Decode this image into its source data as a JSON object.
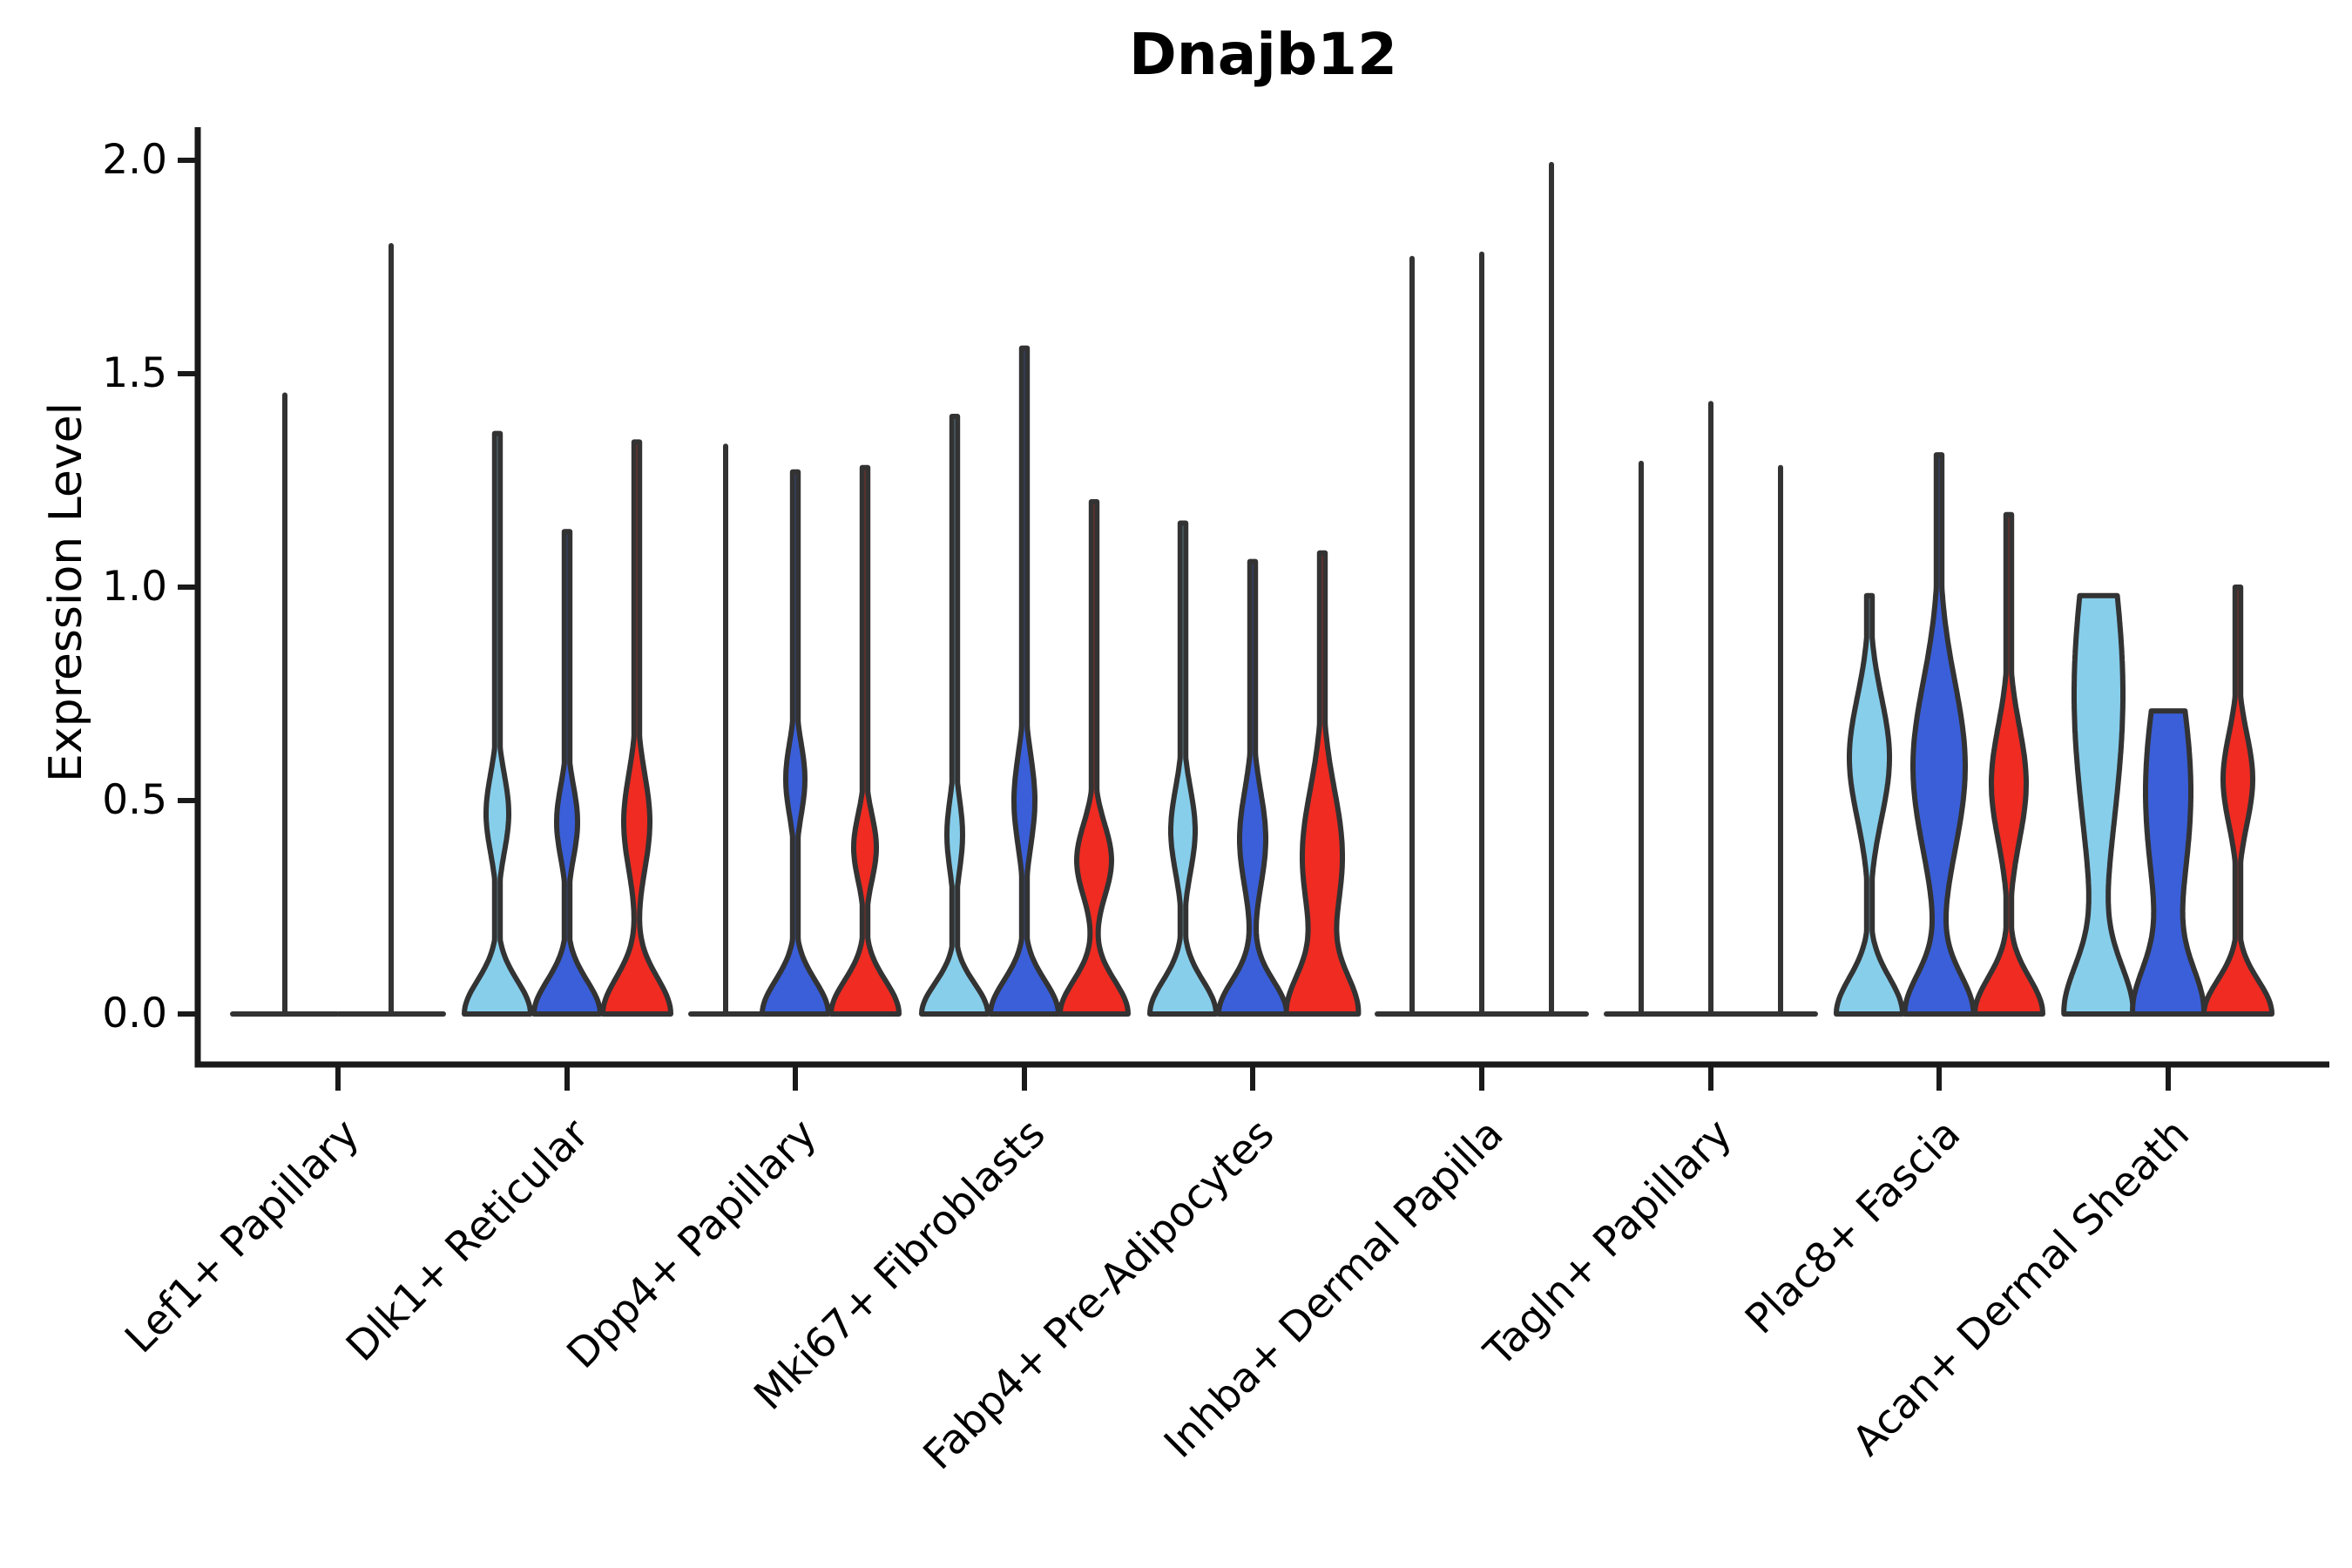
{
  "title": "Dnajb12",
  "axes": {
    "ylabel": "Expression Level",
    "yticks": [
      "0.0",
      "0.5",
      "1.0",
      "1.5",
      "2.0"
    ],
    "ytick_values": [
      0.0,
      0.5,
      1.0,
      1.5,
      2.0
    ],
    "ylim": [
      0.0,
      2.07
    ]
  },
  "colors": {
    "light_blue": "#87CEEB",
    "dark_blue": "#3A5FD9",
    "red": "#EF2B22",
    "outline": "#333333",
    "axis": "#1a1a1a"
  },
  "chart_data": {
    "type": "violin",
    "title": "Dnajb12",
    "xlabel": "",
    "ylabel": "Expression Level",
    "ylim": [
      0.0,
      2.07
    ],
    "grid": false,
    "legend": "none",
    "x_tick_rotation": 45,
    "series_colors": [
      "light_blue",
      "dark_blue",
      "red"
    ],
    "categories": [
      "Lef1+ Papillary",
      "Dlk1+ Reticular",
      "Dpp4+ Papillary",
      "Mki67+ Fibroblasts",
      "Fabp4+ Pre-Adipocytes",
      "Inhba+ Dermal Papilla",
      "Tagln+ Papillary",
      "Plac8+ Fascia",
      "Acan+ Dermal Sheath"
    ],
    "groups": [
      {
        "category": "Lef1+ Papillary",
        "violins": [
          {
            "color": null,
            "peak": 1.45,
            "half_width": 60,
            "bumps": []
          },
          {
            "color": null,
            "peak": 1.8,
            "half_width": 60,
            "bumps": []
          }
        ]
      },
      {
        "category": "Dlk1+ Reticular",
        "violins": [
          {
            "color": "light_blue",
            "peak": 1.36,
            "half_width": 40,
            "bumps": [
              [
                0.0,
                0.11,
                38
              ],
              [
                0.47,
                0.13,
                13
              ]
            ]
          },
          {
            "color": "dark_blue",
            "peak": 1.13,
            "half_width": 40,
            "bumps": [
              [
                0.0,
                0.11,
                38
              ],
              [
                0.45,
                0.12,
                12
              ]
            ]
          },
          {
            "color": "red",
            "peak": 1.34,
            "half_width": 40,
            "bumps": [
              [
                0.0,
                0.12,
                39
              ],
              [
                0.45,
                0.16,
                15
              ]
            ]
          }
        ]
      },
      {
        "category": "Dpp4+ Papillary",
        "violins": [
          {
            "color": null,
            "peak": 1.33,
            "half_width": 40,
            "bumps": []
          },
          {
            "color": "dark_blue",
            "peak": 1.27,
            "half_width": 40,
            "bumps": [
              [
                0.0,
                0.11,
                38
              ],
              [
                0.55,
                0.12,
                11
              ]
            ]
          },
          {
            "color": "red",
            "peak": 1.28,
            "half_width": 40,
            "bumps": [
              [
                0.0,
                0.11,
                39
              ],
              [
                0.39,
                0.11,
                13
              ]
            ]
          }
        ]
      },
      {
        "category": "Mki67+ Fibroblasts",
        "violins": [
          {
            "color": "light_blue",
            "peak": 1.4,
            "half_width": 40,
            "bumps": [
              [
                0.0,
                0.1,
                38
              ],
              [
                0.42,
                0.12,
                9
              ]
            ]
          },
          {
            "color": "dark_blue",
            "peak": 1.56,
            "half_width": 40,
            "bumps": [
              [
                0.0,
                0.11,
                39
              ],
              [
                0.5,
                0.15,
                12
              ]
            ]
          },
          {
            "color": "red",
            "peak": 1.2,
            "half_width": 40,
            "bumps": [
              [
                0.0,
                0.11,
                39
              ],
              [
                0.36,
                0.12,
                20
              ]
            ]
          }
        ]
      },
      {
        "category": "Fabp4+ Pre-Adipocytes",
        "violins": [
          {
            "color": "light_blue",
            "peak": 1.15,
            "half_width": 40,
            "bumps": [
              [
                0.0,
                0.11,
                38
              ],
              [
                0.43,
                0.14,
                14
              ]
            ]
          },
          {
            "color": "dark_blue",
            "peak": 1.06,
            "half_width": 40,
            "bumps": [
              [
                0.0,
                0.11,
                39
              ],
              [
                0.41,
                0.16,
                15
              ]
            ]
          },
          {
            "color": "red",
            "peak": 1.08,
            "half_width": 40,
            "bumps": [
              [
                0.0,
                0.13,
                40
              ],
              [
                0.37,
                0.22,
                23
              ]
            ]
          }
        ]
      },
      {
        "category": "Inhba+ Dermal Papilla",
        "violins": [
          {
            "color": null,
            "peak": 1.77,
            "half_width": 40,
            "bumps": []
          },
          {
            "color": null,
            "peak": 1.78,
            "half_width": 40,
            "bumps": []
          },
          {
            "color": null,
            "peak": 1.99,
            "half_width": 40,
            "bumps": []
          }
        ]
      },
      {
        "category": "Tagln+ Papillary",
        "violins": [
          {
            "color": null,
            "peak": 1.29,
            "half_width": 40,
            "bumps": []
          },
          {
            "color": null,
            "peak": 1.43,
            "half_width": 40,
            "bumps": []
          },
          {
            "color": null,
            "peak": 1.28,
            "half_width": 40,
            "bumps": []
          }
        ]
      },
      {
        "category": "Plac8+ Fascia",
        "violins": [
          {
            "color": "light_blue",
            "peak": 0.98,
            "half_width": 40,
            "bumps": [
              [
                0.0,
                0.12,
                38
              ],
              [
                0.6,
                0.2,
                23
              ]
            ]
          },
          {
            "color": "dark_blue",
            "peak": 1.31,
            "half_width": 40,
            "bumps": [
              [
                0.0,
                0.13,
                39
              ],
              [
                0.58,
                0.28,
                30
              ]
            ]
          },
          {
            "color": "red",
            "peak": 1.17,
            "half_width": 40,
            "bumps": [
              [
                0.0,
                0.12,
                39
              ],
              [
                0.54,
                0.19,
                20
              ]
            ]
          }
        ]
      },
      {
        "category": "Acan+ Dermal Sheath",
        "violins": [
          {
            "color": "light_blue",
            "peak": 0.98,
            "flat_top": true,
            "half_width": 40,
            "bumps": [
              [
                0.0,
                0.16,
                38
              ],
              [
                0.75,
                0.45,
                28
              ]
            ]
          },
          {
            "color": "dark_blue",
            "peak": 0.71,
            "flat_top": true,
            "half_width": 40,
            "bumps": [
              [
                0.0,
                0.15,
                38
              ],
              [
                0.52,
                0.35,
                26
              ]
            ]
          },
          {
            "color": "red",
            "peak": 1.0,
            "half_width": 40,
            "bumps": [
              [
                0.0,
                0.11,
                39
              ],
              [
                0.55,
                0.15,
                17
              ]
            ]
          }
        ]
      }
    ]
  }
}
